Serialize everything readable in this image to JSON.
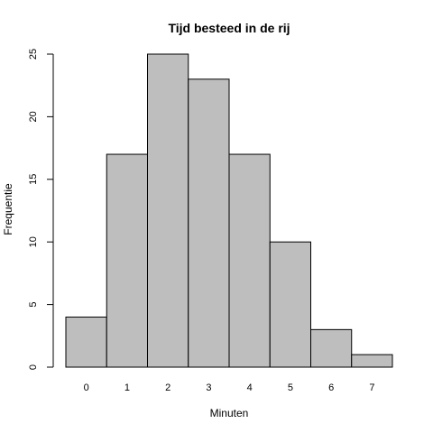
{
  "chart_data": {
    "type": "bar",
    "title": "Tijd besteed in de rij",
    "xlabel": "Minuten",
    "ylabel": "Frequentie",
    "categories": [
      "0",
      "1",
      "2",
      "3",
      "4",
      "5",
      "6",
      "7"
    ],
    "values": [
      4,
      17,
      25,
      23,
      17,
      10,
      3,
      1
    ],
    "ylim": [
      0,
      25
    ],
    "yticks": [
      "0",
      "5",
      "10",
      "15",
      "20",
      "25"
    ],
    "bar_color": "#bebebe",
    "edge_color": "#000000",
    "grid": false,
    "legend": "none"
  }
}
